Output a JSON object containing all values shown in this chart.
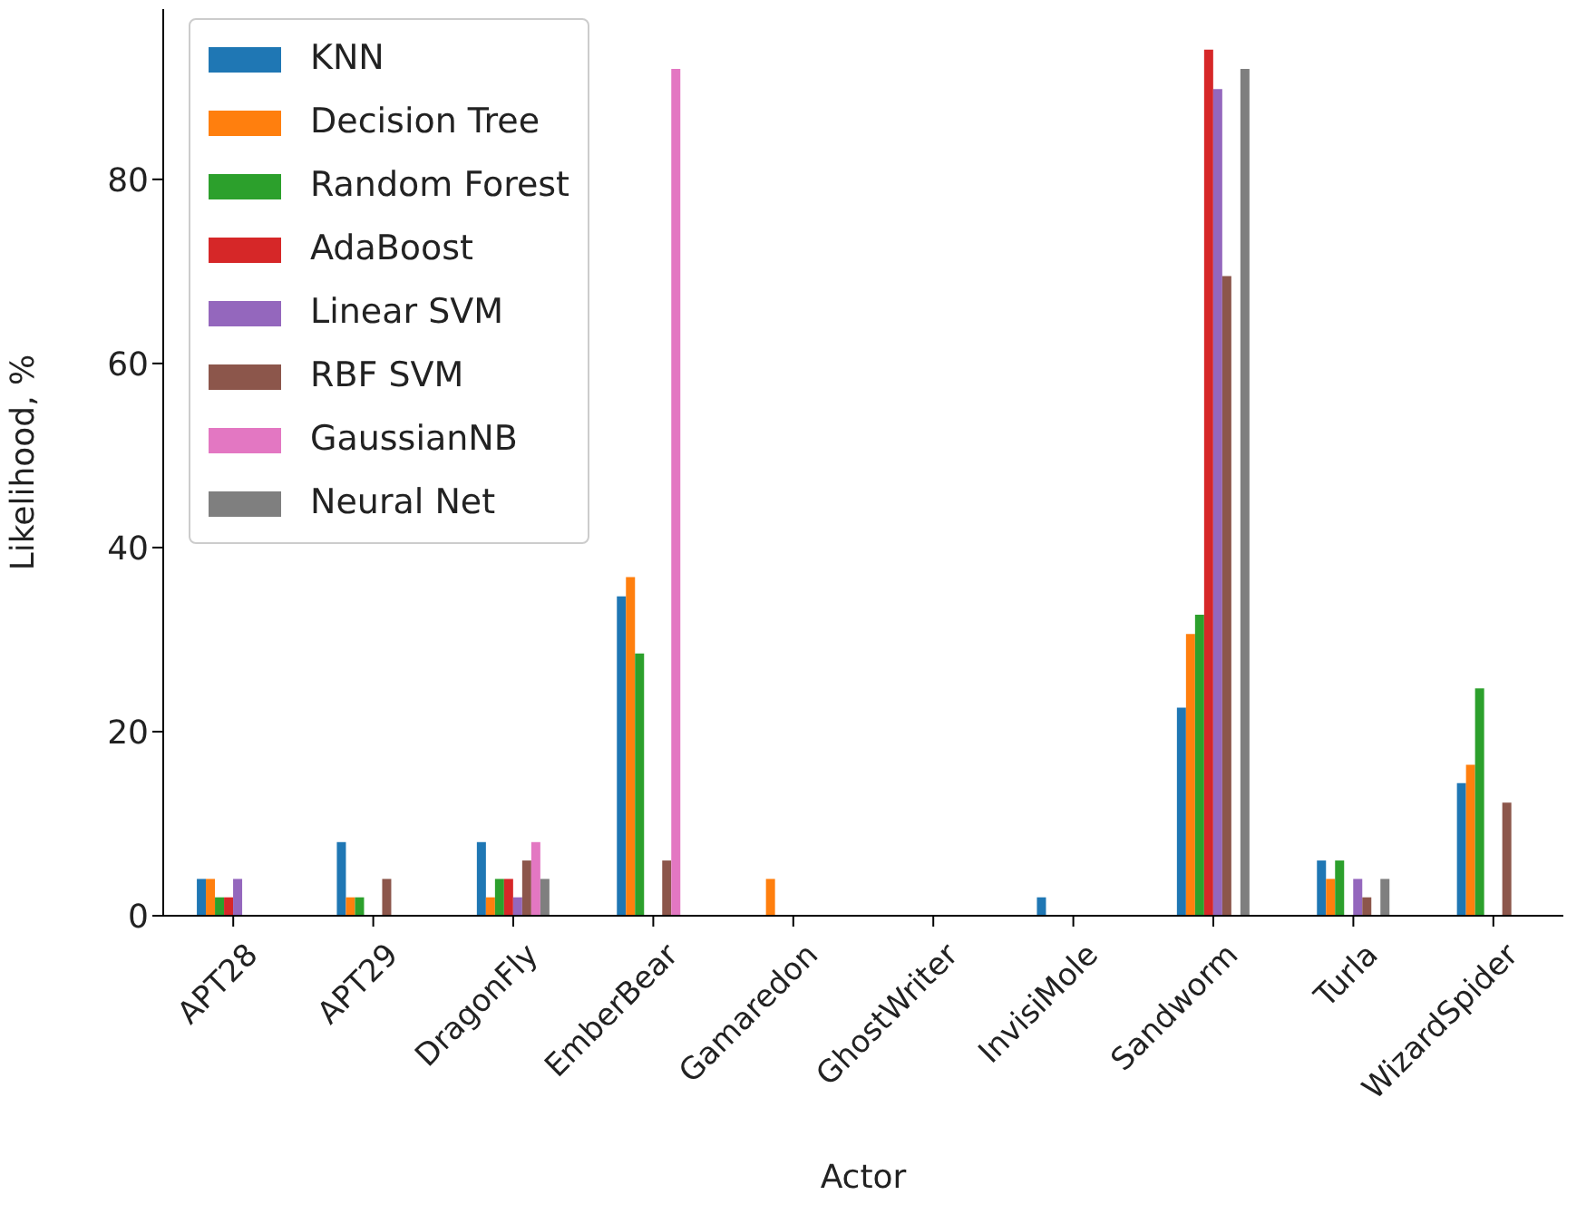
{
  "chart_data": {
    "type": "bar",
    "xlabel": "Actor",
    "ylabel": "Likelihood, %",
    "categories": [
      "APT28",
      "APT29",
      "DragonFly",
      "EmberBear",
      "Gamaredon",
      "GhostWriter",
      "InvisiMole",
      "Sandworm",
      "Turla",
      "WizardSpider"
    ],
    "series": [
      {
        "name": "KNN",
        "color": "#1f77b4",
        "values": [
          4,
          8,
          8,
          34.7,
          0,
          0,
          2,
          22.6,
          6,
          14.4
        ]
      },
      {
        "name": "Decision Tree",
        "color": "#ff7f0e",
        "values": [
          4,
          2,
          2,
          36.8,
          4,
          0,
          0,
          30.6,
          4,
          16.4
        ]
      },
      {
        "name": "Random Forest",
        "color": "#2ca02c",
        "values": [
          2,
          2,
          4,
          28.5,
          0,
          0,
          0,
          32.7,
          6,
          24.7
        ]
      },
      {
        "name": "AdaBoost",
        "color": "#d62728",
        "values": [
          2,
          0,
          4,
          0,
          0,
          0,
          0,
          94.1,
          0,
          0
        ]
      },
      {
        "name": "Linear SVM",
        "color": "#9467bd",
        "values": [
          4,
          0,
          2,
          0,
          0,
          0,
          0,
          89.8,
          4,
          0
        ]
      },
      {
        "name": "RBF SVM",
        "color": "#8c564b",
        "values": [
          0,
          4,
          6,
          6,
          0,
          0,
          0,
          69.5,
          2,
          12.3
        ]
      },
      {
        "name": "GaussianNB",
        "color": "#e377c2",
        "values": [
          0,
          0,
          8,
          92,
          0,
          0,
          0,
          0,
          0,
          0
        ]
      },
      {
        "name": "Neural Net",
        "color": "#7f7f7f",
        "values": [
          0,
          0,
          4,
          0,
          0,
          0,
          0,
          92,
          4,
          0
        ]
      }
    ],
    "ylim": [
      0,
      98.5
    ],
    "yticks": [
      0,
      20,
      40,
      60,
      80
    ],
    "grid": false,
    "legend": "top left"
  }
}
